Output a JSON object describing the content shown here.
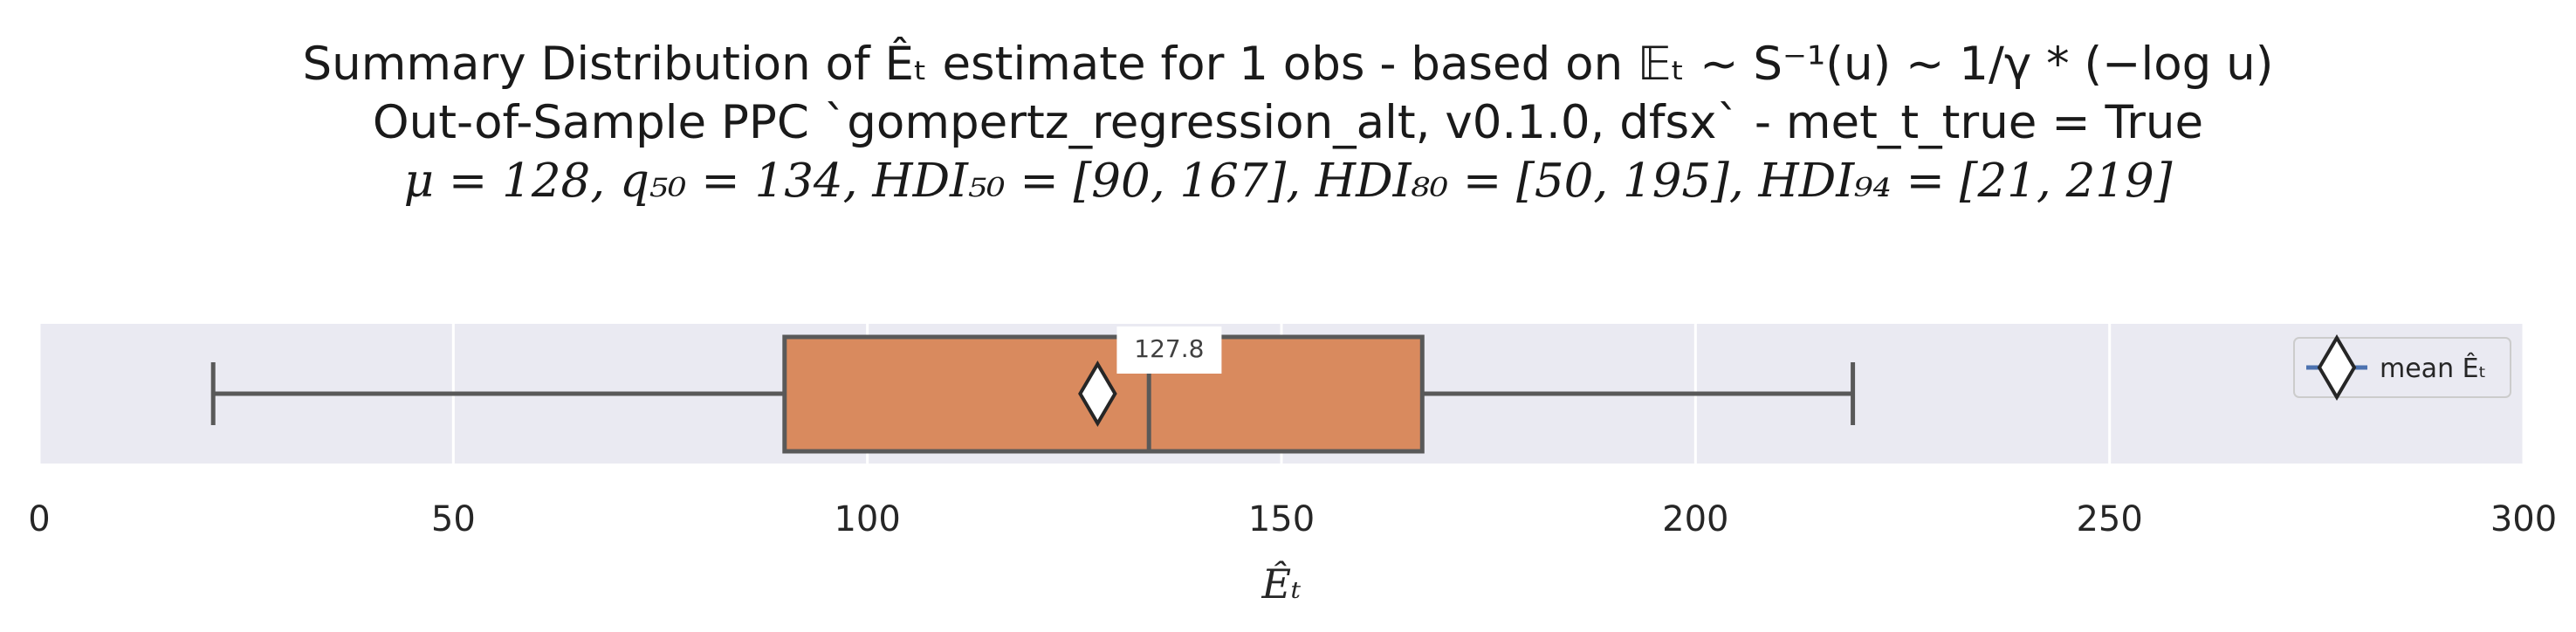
{
  "title": {
    "line1": "Summary Distribution of Êₜ estimate for 1 obs - based on 𝔼ₜ ~ S⁻¹(u) ~ 1/γ * (−log u)",
    "line2": "Out-of-Sample PPC `gompertz_regression_alt, v0.1.0, dfsx` - met_t_true = True",
    "line3": "μ = 128, q₅₀ = 134, HDI₅₀ = [90, 167], HDI₈₀ = [50, 195], HDI₉₄ = [21, 219]"
  },
  "chart_data": {
    "type": "box",
    "orientation": "horizontal",
    "xlabel": "Êₜ",
    "xlim": [
      0,
      300
    ],
    "xticks": [
      0,
      50,
      100,
      150,
      200,
      250,
      300
    ],
    "grid": true,
    "box": {
      "whisker_low": 21,
      "q1": 90,
      "median": 134,
      "q3": 167,
      "whisker_high": 219,
      "mean": 127.8,
      "mean_label": "127.8",
      "fill_color": "#d98a5e",
      "edge_color": "#595959"
    },
    "legend": {
      "position": "right",
      "entries": [
        {
          "label": "mean Êₜ",
          "marker": "diamond",
          "line_color": "#4c72b0"
        }
      ]
    },
    "background_color": "#eaeaf2"
  }
}
